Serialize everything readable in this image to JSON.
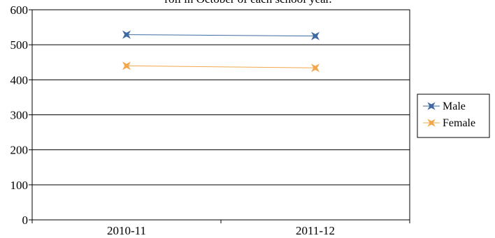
{
  "chart_data": {
    "type": "line",
    "title": "roll in October of each school year.",
    "xlabel": "",
    "ylabel": "",
    "categories": [
      "2010-11",
      "2011-12"
    ],
    "ylim": [
      0,
      600
    ],
    "yticks": [
      0,
      100,
      200,
      300,
      400,
      500,
      600
    ],
    "grid": true,
    "legend_position": "right",
    "series": [
      {
        "name": "Male",
        "values": [
          529,
          525
        ],
        "color": "#3f6aa1",
        "marker": "star4"
      },
      {
        "name": "Female",
        "values": [
          440,
          434
        ],
        "color": "#f2a74e",
        "marker": "star4"
      }
    ]
  }
}
